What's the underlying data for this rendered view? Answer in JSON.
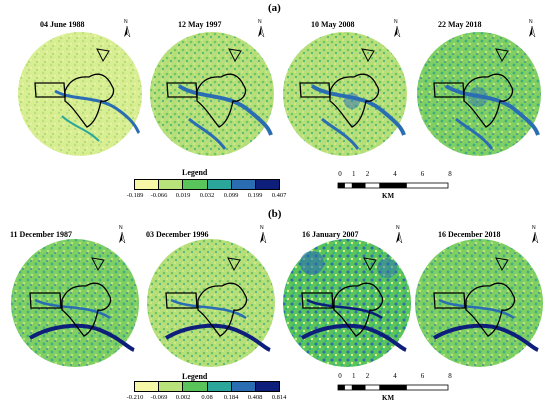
{
  "panels": [
    {
      "label": "(a)",
      "maps": [
        {
          "date": "04 June 1988"
        },
        {
          "date": "12 May 1997"
        },
        {
          "date": "10 May 2008"
        },
        {
          "date": "22 May 2018"
        }
      ],
      "legend": {
        "title": "Legend",
        "colors": [
          "#f7f7a8",
          "#b8e27a",
          "#58c45a",
          "#2aa79a",
          "#2a6db3",
          "#0d1f7a"
        ],
        "values": [
          "-0.189",
          "-0.066",
          "0.019",
          "0.032",
          "0.099",
          "0.199",
          "0.407"
        ]
      },
      "scale": {
        "ticks": [
          "0",
          "1",
          "2",
          "4",
          "6",
          "8"
        ],
        "unit": "KM"
      }
    },
    {
      "label": "(b)",
      "maps": [
        {
          "date": "11 December 1987"
        },
        {
          "date": "03 December 1996"
        },
        {
          "date": "16 January 2007"
        },
        {
          "date": "16 December 2018"
        }
      ],
      "legend": {
        "title": "Legend",
        "colors": [
          "#f7f7a8",
          "#b8e27a",
          "#58c45a",
          "#2aa79a",
          "#2a6db3",
          "#0d1f7a"
        ],
        "values": [
          "-0.210",
          "-0.069",
          "0.002",
          "0.08",
          "0.184",
          "0.408",
          "0.814"
        ]
      },
      "scale": {
        "ticks": [
          "0",
          "1",
          "2",
          "4",
          "6",
          "8"
        ],
        "unit": "KM"
      }
    }
  ],
  "north_label": "N",
  "icons": {
    "north_arrow": "north-arrow-icon"
  }
}
